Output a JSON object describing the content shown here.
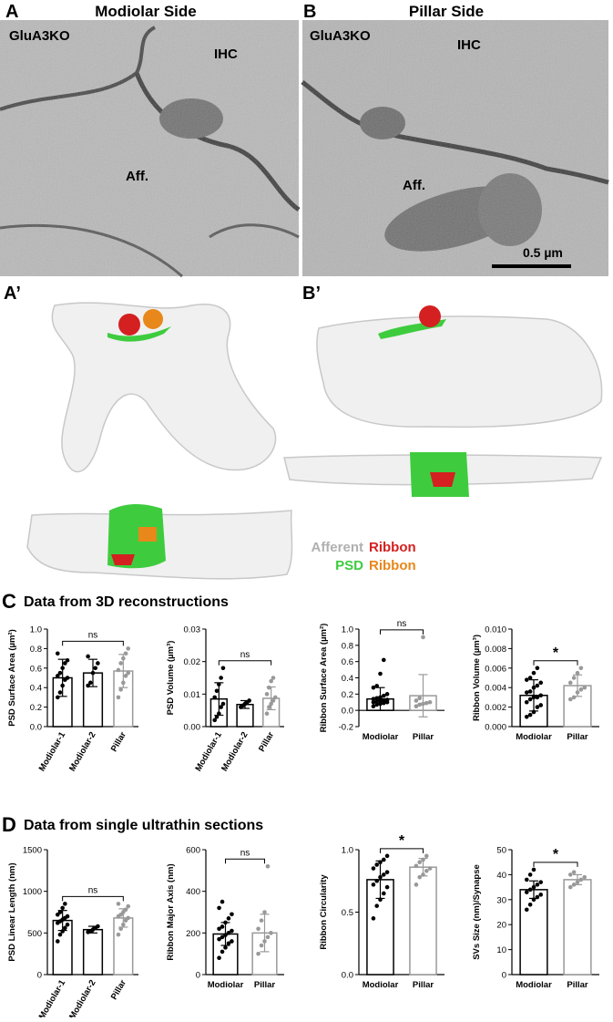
{
  "panels": {
    "A": {
      "letter": "A",
      "title": "Modiolar Side",
      "labels": [
        "GluA3KO",
        "IHC",
        "Aff."
      ]
    },
    "B": {
      "letter": "B",
      "title": "Pillar Side",
      "labels": [
        "GluA3KO",
        "IHC",
        "Aff."
      ],
      "scale_bar": "0.5 µm"
    },
    "A_prime": {
      "letter": "A’"
    },
    "B_prime": {
      "letter": "B’"
    }
  },
  "legend": {
    "afferent": "Afferent",
    "ribbon_1": "Ribbon",
    "psd": "PSD",
    "ribbon_2": "Ribbon"
  },
  "sections": [
    {
      "letter": "C",
      "title": "Data from 3D reconstructions"
    },
    {
      "letter": "D",
      "title": "Data from single ultrathin sections"
    }
  ],
  "chart_data": [
    {
      "type": "bar",
      "ylabel": "PSD Surface Area (µm²)",
      "categories": [
        "Modiolar-1",
        "Modiolar-2",
        "Pillar"
      ],
      "values": [
        0.5,
        0.55,
        0.57
      ],
      "errors": [
        0.19,
        0.14,
        0.17
      ],
      "colors": [
        "#000000",
        "#000000",
        "#999999"
      ],
      "points": [
        [
          0.3,
          0.35,
          0.42,
          0.48,
          0.5,
          0.52,
          0.55,
          0.6,
          0.65,
          0.68,
          0.75
        ],
        [
          0.42,
          0.45,
          0.55,
          0.6,
          0.65,
          0.72
        ],
        [
          0.3,
          0.38,
          0.45,
          0.52,
          0.55,
          0.58,
          0.65,
          0.7,
          0.75,
          0.8
        ]
      ],
      "ylim": [
        0,
        1.0
      ],
      "yticks": [
        {
          "value": 0,
          "label": "0.0"
        },
        0.2,
        0.4,
        0.6,
        0.8,
        {
          "value": 1,
          "label": "1.0"
        }
      ],
      "significance": "ns"
    },
    {
      "type": "bar",
      "ylabel": "PSD Volume (µm³)",
      "categories": [
        "Modiolar-1",
        "Modiolar-2",
        "Pillar"
      ],
      "values": [
        0.0085,
        0.0068,
        0.0087
      ],
      "errors": [
        0.005,
        0.0012,
        0.0035
      ],
      "colors": [
        "#000000",
        "#000000",
        "#999999"
      ],
      "points": [
        [
          0.002,
          0.003,
          0.004,
          0.006,
          0.007,
          0.009,
          0.011,
          0.013,
          0.015,
          0.018
        ],
        [
          0.006,
          0.0065,
          0.007,
          0.0075,
          0.008
        ],
        [
          0.004,
          0.006,
          0.007,
          0.008,
          0.009,
          0.01,
          0.012,
          0.014,
          0.015
        ]
      ],
      "ylim": [
        0,
        0.03
      ],
      "yticks": [
        {
          "value": 0,
          "label": "0.00"
        },
        0.01,
        0.02,
        0.03
      ],
      "significance": "ns"
    },
    {
      "type": "bar",
      "ylabel": "Ribbon Surface Area (µm²)",
      "categories": [
        "Modiolar",
        "Pillar"
      ],
      "values": [
        0.14,
        0.18
      ],
      "errors": [
        0.14,
        0.26
      ],
      "colors": [
        "#000000",
        "#999999"
      ],
      "points": [
        [
          0.05,
          0.07,
          0.08,
          0.09,
          0.1,
          0.1,
          0.11,
          0.12,
          0.12,
          0.13,
          0.14,
          0.15,
          0.16,
          0.18,
          0.2,
          0.28,
          0.3,
          0.45,
          0.62
        ],
        [
          0.05,
          0.07,
          0.08,
          0.09,
          0.1,
          0.12,
          0.15,
          0.9
        ]
      ],
      "ylim": [
        -0.2,
        1.0
      ],
      "yticks": [
        -0.2,
        {
          "value": 0,
          "label": "0.0"
        },
        0.2,
        0.4,
        0.6,
        0.8,
        {
          "value": 1,
          "label": "1.0"
        }
      ],
      "significance": "ns"
    },
    {
      "type": "bar",
      "ylabel": "Ribbon Volume (µm³)",
      "categories": [
        "Modiolar",
        "Pillar"
      ],
      "values": [
        0.0032,
        0.0042
      ],
      "errors": [
        0.0016,
        0.0011
      ],
      "colors": [
        "#000000",
        "#999999"
      ],
      "points": [
        [
          0.001,
          0.0012,
          0.0015,
          0.002,
          0.0022,
          0.0025,
          0.0028,
          0.003,
          0.003,
          0.0032,
          0.0035,
          0.0036,
          0.004,
          0.0042,
          0.0045,
          0.0048,
          0.005,
          0.0055,
          0.006
        ],
        [
          0.0028,
          0.003,
          0.0035,
          0.0038,
          0.004,
          0.0045,
          0.005,
          0.0055,
          0.006
        ]
      ],
      "ylim": [
        0,
        0.01
      ],
      "yticks": [
        {
          "value": 0,
          "label": "0.000"
        },
        0.002,
        0.004,
        0.006,
        0.008,
        {
          "value": 0.01,
          "label": "0.010"
        }
      ],
      "significance": "*"
    },
    {
      "type": "bar",
      "ylabel": "PSD Linear Length (nm)",
      "categories": [
        "Modiolar-1",
        "Modiolar-2",
        "Pillar"
      ],
      "values": [
        650,
        540,
        680
      ],
      "errors": [
        120,
        40,
        110
      ],
      "colors": [
        "#000000",
        "#000000",
        "#999999"
      ],
      "points": [
        [
          400,
          480,
          520,
          560,
          600,
          620,
          640,
          660,
          680,
          700,
          720,
          750,
          800,
          850
        ],
        [
          510,
          520,
          540,
          560,
          580
        ],
        [
          480,
          550,
          600,
          650,
          680,
          700,
          720,
          750,
          780,
          820,
          850
        ]
      ],
      "ylim": [
        0,
        1500
      ],
      "yticks": [
        0,
        500,
        1000,
        1500
      ],
      "significance": "ns"
    },
    {
      "type": "bar",
      "ylabel": "Ribbon Major Axis (nm)",
      "categories": [
        "Modiolar",
        "Pillar"
      ],
      "values": [
        195,
        200
      ],
      "errors": [
        55,
        90
      ],
      "colors": [
        "#000000",
        "#999999"
      ],
      "points": [
        [
          80,
          110,
          130,
          150,
          160,
          170,
          180,
          190,
          200,
          210,
          220,
          230,
          250,
          270,
          290,
          320,
          350
        ],
        [
          100,
          140,
          160,
          180,
          200,
          220,
          260,
          300,
          520
        ]
      ],
      "ylim": [
        0,
        600
      ],
      "yticks": [
        0,
        200,
        400,
        600
      ],
      "significance": "ns"
    },
    {
      "type": "bar",
      "ylabel": "Ribbon Circularity",
      "categories": [
        "Modiolar",
        "Pillar"
      ],
      "values": [
        0.76,
        0.86
      ],
      "errors": [
        0.15,
        0.07
      ],
      "colors": [
        "#000000",
        "#999999"
      ],
      "points": [
        [
          0.45,
          0.55,
          0.6,
          0.65,
          0.7,
          0.72,
          0.75,
          0.78,
          0.8,
          0.82,
          0.85,
          0.88,
          0.9,
          0.92,
          0.95
        ],
        [
          0.72,
          0.78,
          0.8,
          0.83,
          0.85,
          0.87,
          0.9,
          0.92,
          0.95
        ]
      ],
      "ylim": [
        0,
        1.0
      ],
      "yticks": [
        {
          "value": 0,
          "label": "0.0"
        },
        0.5,
        {
          "value": 1,
          "label": "1.0"
        }
      ],
      "significance": "*"
    },
    {
      "type": "bar",
      "ylabel": "SVs Size (nm)/Synapse",
      "categories": [
        "Modiolar",
        "Pillar"
      ],
      "values": [
        34,
        38
      ],
      "errors": [
        3.5,
        2
      ],
      "colors": [
        "#000000",
        "#999999"
      ],
      "points": [
        [
          26,
          28,
          30,
          31,
          32,
          33,
          34,
          35,
          36,
          37,
          38,
          40,
          42
        ],
        [
          35,
          36,
          37,
          38,
          39,
          40,
          41
        ]
      ],
      "ylim": [
        0,
        50
      ],
      "yticks": [
        0,
        10,
        20,
        30,
        40,
        50
      ],
      "significance": "*"
    }
  ]
}
